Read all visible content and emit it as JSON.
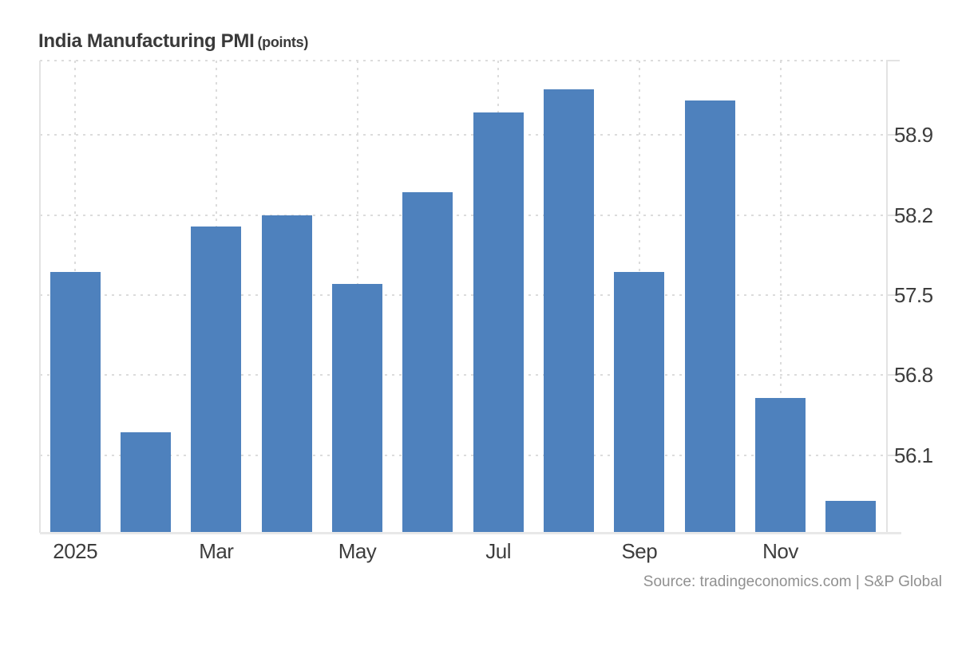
{
  "header": {
    "title": "India Manufacturing PMI",
    "units": "(points)"
  },
  "source": {
    "text": "Source: tradingeconomics.com | S&P Global"
  },
  "colors": {
    "bar": "#4e81bd",
    "grid": "#dcdcdc",
    "axis": "#e3e3e3",
    "text": "#3d3d3d",
    "muted": "#909090",
    "background": "#ffffff"
  },
  "chart_data": {
    "type": "bar",
    "title": "India Manufacturing PMI",
    "ylabel": "points",
    "categories": [
      "Jan 2025",
      "Feb 2025",
      "Mar 2025",
      "Apr 2025",
      "May 2025",
      "Jun 2025",
      "Jul 2025",
      "Aug 2025",
      "Sep 2025",
      "Oct 2025",
      "Nov 2025",
      "Dec 2025"
    ],
    "values": [
      57.7,
      56.3,
      58.1,
      58.2,
      57.6,
      58.4,
      59.1,
      59.3,
      57.7,
      59.2,
      56.6,
      55.7
    ],
    "x_ticks": [
      {
        "month_index": 0,
        "label": "2025"
      },
      {
        "month_index": 2,
        "label": "Mar"
      },
      {
        "month_index": 4,
        "label": "May"
      },
      {
        "month_index": 6,
        "label": "Jul"
      },
      {
        "month_index": 8,
        "label": "Sep"
      },
      {
        "month_index": 10,
        "label": "Nov"
      }
    ],
    "y_ticks": [
      58.9,
      58.2,
      57.5,
      56.8,
      56.1
    ],
    "ylim": [
      55.42,
      59.55
    ],
    "grid": "dotted",
    "legend_position": "none",
    "y_axis_side": "right"
  }
}
